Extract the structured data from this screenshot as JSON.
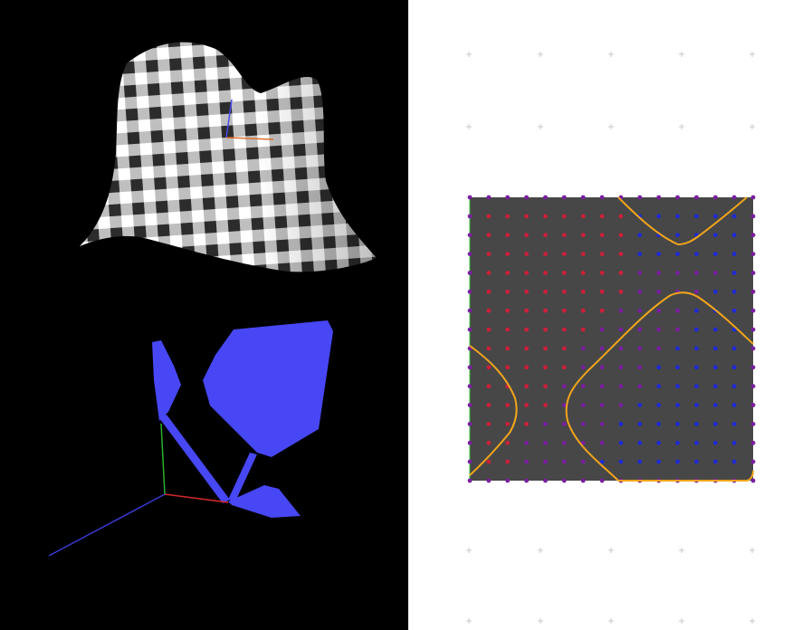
{
  "app": {
    "left_view": "3d-viewport",
    "right_view": "2d-parameter-domain"
  },
  "colors": {
    "viewport_background": "#000000",
    "domain_background": "#ffffff",
    "surface_checker_dark": "#111111",
    "surface_checker_light": "#ffffff",
    "blue_mesh": "#4747f5",
    "plot_area": "#474747",
    "grid_point_red": "#cc1f3a",
    "grid_point_blue": "#1f2ad6",
    "grid_point_purple": "#7a1fa0",
    "contour": "#f2a51c",
    "axis_x": "#d42a2a",
    "axis_y": "#2ab02a",
    "axis_z": "#3a3ad6",
    "grid_cross": "#c8c8c8"
  },
  "icons": {
    "axes": "axes-gizmo-icon"
  }
}
